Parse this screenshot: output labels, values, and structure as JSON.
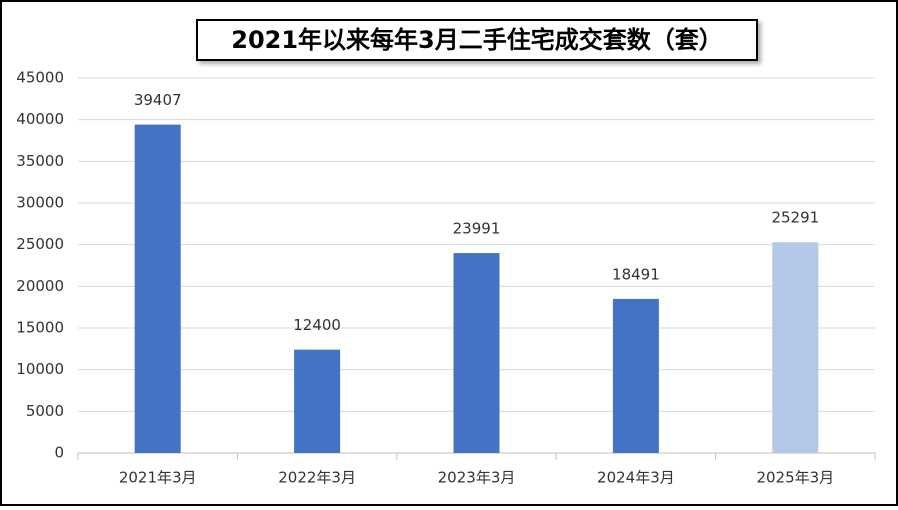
{
  "chart_data": {
    "type": "bar",
    "title": "2021年以来每年3月二手住宅成交套数（套）",
    "categories": [
      "2021年3月",
      "2022年3月",
      "2023年3月",
      "2024年3月",
      "2025年3月"
    ],
    "values": [
      39407,
      12400,
      23991,
      18491,
      25291
    ],
    "colors": [
      "#4472c4",
      "#4472c4",
      "#4472c4",
      "#4472c4",
      "#b4c7e7"
    ],
    "ylim": [
      0,
      45000
    ],
    "yticks": [
      0,
      5000,
      10000,
      15000,
      20000,
      25000,
      30000,
      35000,
      40000,
      45000
    ],
    "grid": true
  }
}
